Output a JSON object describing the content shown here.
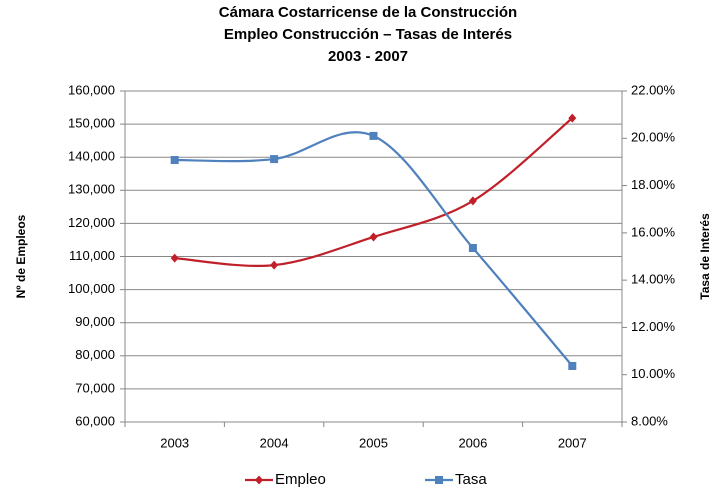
{
  "chart_data": {
    "type": "line",
    "title": [
      "Cámara Costarricense de la Construcción",
      "Empleo Construcción – Tasas de Interés",
      "2003 - 2007"
    ],
    "ylabel": "Nº de Empleos",
    "y2label": "Tasa de Interés",
    "categories": [
      "2003",
      "2004",
      "2005",
      "2006",
      "2007"
    ],
    "series": [
      {
        "name": "Empleo",
        "color": "#c0202a",
        "marker": "diamond",
        "values": [
          109500,
          107400,
          115900,
          126800,
          151800
        ]
      },
      {
        "name": "Tasa",
        "color": "#4f81bd",
        "marker": "square",
        "axis": "y2",
        "values": [
          19.08,
          19.12,
          20.1,
          15.36,
          10.37
        ]
      }
    ],
    "ylim": [
      60000,
      160000
    ],
    "yticks": [
      {
        "value": 60000,
        "label": "60,000"
      },
      {
        "value": 70000,
        "label": "70,000"
      },
      {
        "value": 80000,
        "label": "80,000"
      },
      {
        "value": 90000,
        "label": "90,000"
      },
      {
        "value": 100000,
        "label": "100,000"
      },
      {
        "value": 110000,
        "label": "110,000"
      },
      {
        "value": 120000,
        "label": "120,000"
      },
      {
        "value": 130000,
        "label": "130,000"
      },
      {
        "value": 140000,
        "label": "140,000"
      },
      {
        "value": 150000,
        "label": "150,000"
      },
      {
        "value": 160000,
        "label": "160,000"
      }
    ],
    "y2lim": [
      8,
      22
    ],
    "y2ticks": [
      {
        "value": 8,
        "label": "8.00%"
      },
      {
        "value": 10,
        "label": "10.00%"
      },
      {
        "value": 12,
        "label": "12.00%"
      },
      {
        "value": 14,
        "label": "14.00%"
      },
      {
        "value": 16,
        "label": "16.00%"
      },
      {
        "value": 18,
        "label": "18.00%"
      },
      {
        "value": 20,
        "label": "20.00%"
      },
      {
        "value": 22,
        "label": "22.00%"
      }
    ],
    "grid": true,
    "legend": "bottom",
    "smooth": true
  }
}
